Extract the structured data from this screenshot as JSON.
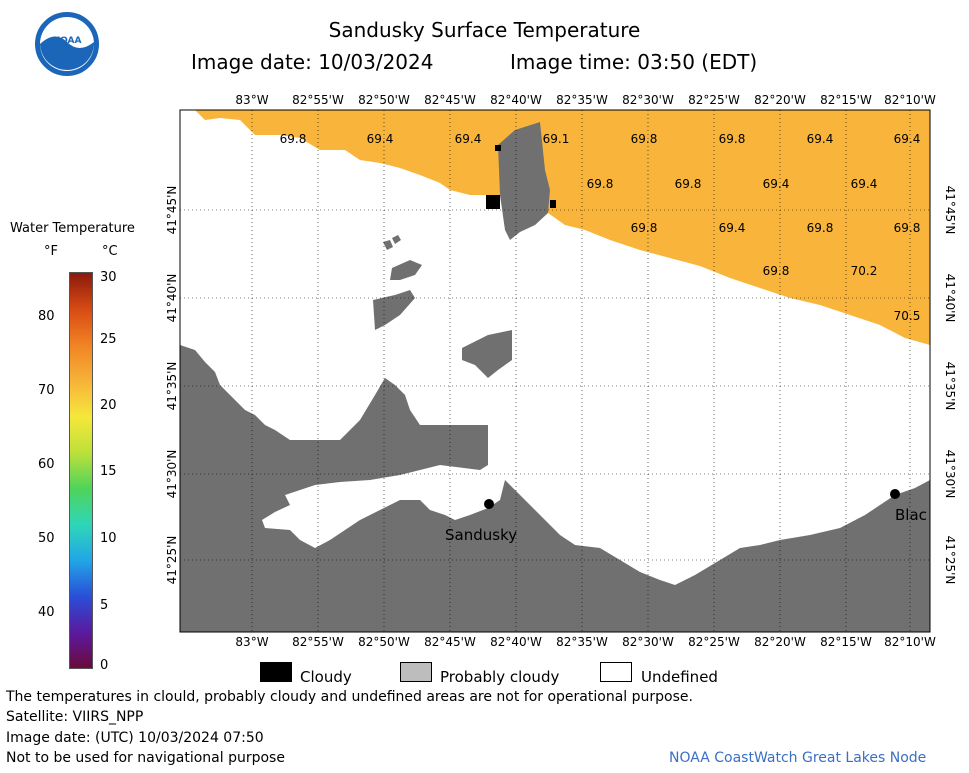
{
  "header": {
    "title": "Sandusky Surface Temperature",
    "image_date": "Image date: 10/03/2024",
    "image_time": "Image time: 03:50 (EDT)"
  },
  "colorbar": {
    "title": "Water Temperature",
    "unit_f": "°F",
    "unit_c": "°C",
    "f_ticks": [
      "80",
      "70",
      "60",
      "50",
      "40"
    ],
    "c_ticks": [
      "30",
      "25",
      "20",
      "15",
      "10",
      "5",
      "0"
    ],
    "colors": [
      "#6a0a3c",
      "#5a1aa0",
      "#2a4fd8",
      "#21a6e6",
      "#2fd6b8",
      "#4fd45a",
      "#bde03a",
      "#f6e83a",
      "#f7b23a",
      "#f08324",
      "#d74a14",
      "#8a1a0c"
    ]
  },
  "map": {
    "lon_labels": [
      "83°W",
      "82°55'W",
      "82°50'W",
      "82°45'W",
      "82°40'W",
      "82°35'W",
      "82°30'W",
      "82°25'W",
      "82°20'W",
      "82°15'W",
      "82°10'W"
    ],
    "lat_labels": [
      "41°45'N",
      "41°40'N",
      "41°35'N",
      "41°30'N",
      "41°25'N"
    ],
    "water_color": "#f9b53b",
    "land_color": "#707070",
    "temperature_labels": [
      "69.8",
      "69.4",
      "69.4",
      "69.1",
      "69.8",
      "69.8",
      "69.4",
      "69.4",
      "69.8",
      "69.8",
      "69.4",
      "69.4",
      "69.8",
      "69.4",
      "69.8",
      "69.8",
      "69.8",
      "70.2",
      "70.5"
    ],
    "places": {
      "sandusky": "Sandusky",
      "black": "Blac"
    }
  },
  "key": {
    "cloudy": "Cloudy",
    "probably_cloudy": "Probably cloudy",
    "undefined": "Undefined"
  },
  "footer": {
    "disclaimer": "The temperatures in clould, probably cloudy and undefined areas are not for operational purpose.",
    "satellite": "Satellite: VIIRS_NPP",
    "utc_date": "Image date: (UTC) 10/03/2024  07:50",
    "nav": "Not to be used for navigational purpose",
    "credit": "NOAA CoastWatch Great Lakes Node"
  }
}
